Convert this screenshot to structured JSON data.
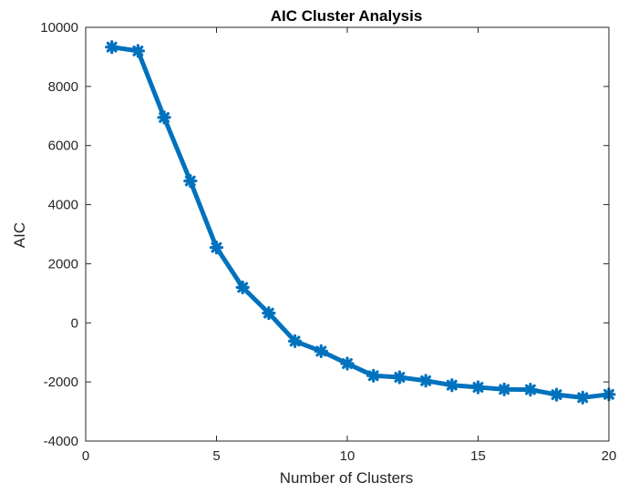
{
  "chart_data": {
    "type": "line",
    "title": "AIC Cluster Analysis",
    "xlabel": "Number of Clusters",
    "ylabel": "AIC",
    "xlim": [
      0,
      20
    ],
    "ylim": [
      -4000,
      10000
    ],
    "xticks": [
      "0",
      "5",
      "10",
      "15",
      "20"
    ],
    "yticks": [
      "-4000",
      "-2000",
      "0",
      "2000",
      "4000",
      "6000",
      "8000",
      "10000"
    ],
    "grid": false,
    "marker": "asterisk",
    "color": "#0072BD",
    "series": [
      {
        "x": [
          1,
          2,
          3,
          4,
          5,
          6,
          7,
          8,
          9,
          10,
          11,
          12,
          13,
          14,
          15,
          16,
          17,
          18,
          19,
          20
        ],
        "values": [
          9330,
          9200,
          6950,
          4800,
          2550,
          1200,
          330,
          -620,
          -960,
          -1380,
          -1790,
          -1840,
          -1960,
          -2110,
          -2180,
          -2250,
          -2260,
          -2430,
          -2530,
          -2420
        ]
      }
    ]
  }
}
